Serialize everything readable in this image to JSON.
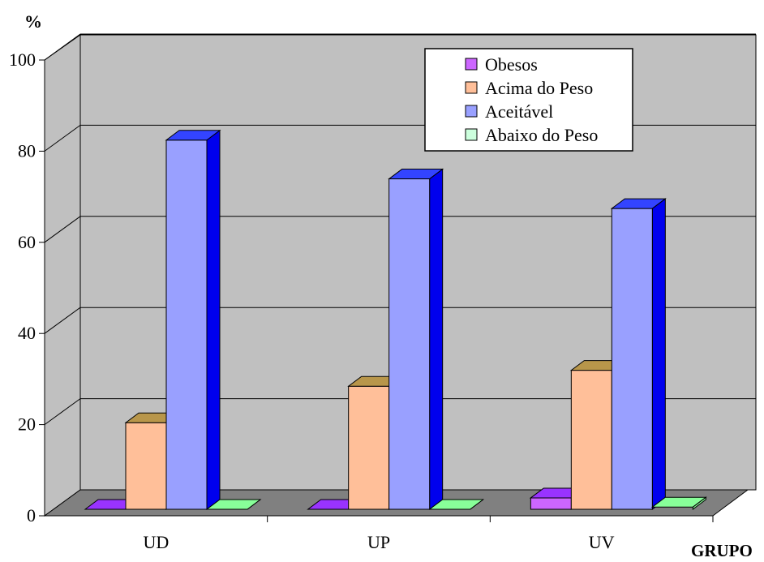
{
  "chart_data": {
    "type": "bar",
    "ylabel": "%",
    "xlabel": "GRUPO",
    "ylim": [
      0,
      100
    ],
    "yticks": [
      0,
      20,
      40,
      60,
      80,
      100
    ],
    "categories": [
      "UD",
      "UP",
      "UV"
    ],
    "series": [
      {
        "name": "Obesos",
        "values": [
          0,
          0,
          2.5
        ],
        "color": "#cc66ff",
        "top": "#9933ff"
      },
      {
        "name": "Acima do Peso",
        "values": [
          19,
          27,
          30.5
        ],
        "color": "#ffbf99",
        "top": "#b8964a"
      },
      {
        "name": "Aceitável",
        "values": [
          81,
          72.5,
          66
        ],
        "color": "#99a0ff",
        "top": "#3344ff",
        "side": "#0000ee"
      },
      {
        "name": "Abaixo do Peso",
        "values": [
          0,
          0,
          0.5
        ],
        "color": "#ccffdd",
        "top": "#88ff99"
      }
    ],
    "legend": "top-right",
    "grid": true
  }
}
